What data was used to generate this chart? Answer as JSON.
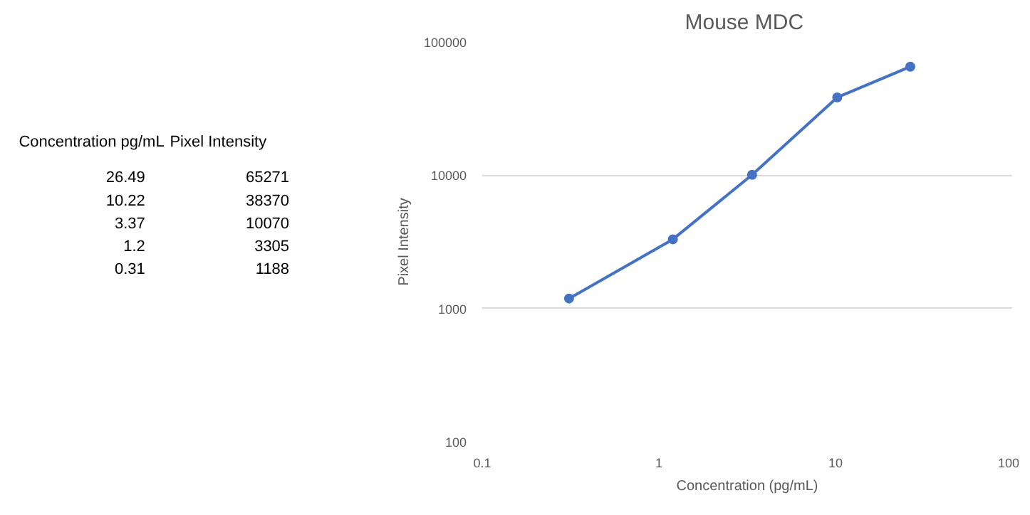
{
  "chart_data": {
    "type": "line",
    "title": "Mouse  MDC",
    "xlabel": "Concentration (pg/mL)",
    "ylabel": "Pixel Intensity",
    "annotations": [
      "Concentration pg/mL",
      "Pixel Intensity",
      "26.49",
      "65271",
      "10.22",
      "38370",
      "3.37",
      "10070",
      "1.2",
      "3305",
      "0.31",
      "1188"
    ],
    "x": [
      26.49,
      10.22,
      3.37,
      1.2,
      0.31
    ],
    "series": [
      {
        "color": "#4472c4",
        "values": [
          65271,
          38370,
          10070,
          3305,
          1188
        ]
      }
    ],
    "log": "xy",
    "xlim": [
      0.1,
      100
    ],
    "ylim": [
      100,
      100000
    ],
    "xticks": [
      0.1,
      1,
      10,
      100
    ],
    "yticks": [
      100,
      1000,
      10000,
      100000
    ],
    "grid": "y",
    "marker": "circle",
    "line_style": "solid"
  }
}
